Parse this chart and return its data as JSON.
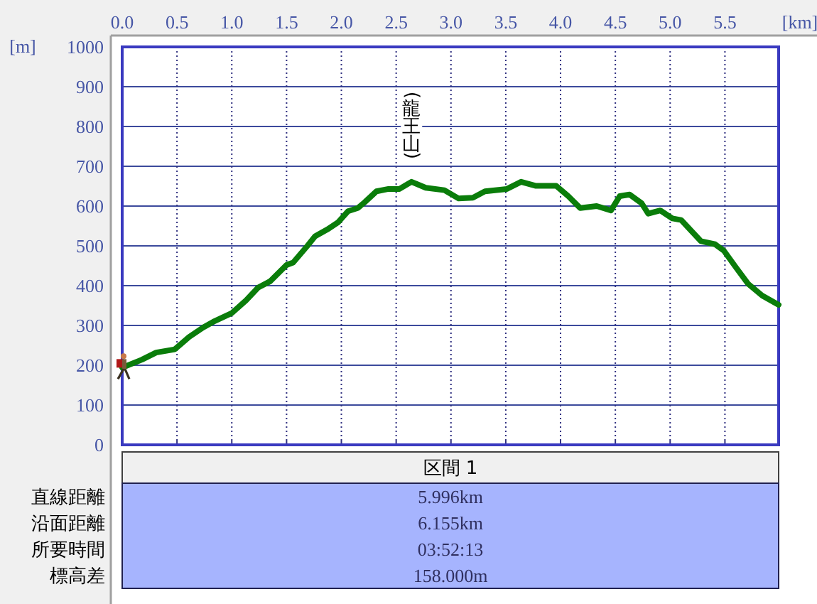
{
  "chart_data": [
    {
      "type": "line",
      "xlabel": "[km]",
      "ylabel": "[m]",
      "x": [
        0,
        0.18,
        0.31,
        0.48,
        0.61,
        0.74,
        0.83,
        1.0,
        1.13,
        1.24,
        1.35,
        1.5,
        1.56,
        1.69,
        1.76,
        1.87,
        1.97,
        2.06,
        2.15,
        2.21,
        2.32,
        2.43,
        2.53,
        2.64,
        2.77,
        2.94,
        3.07,
        3.2,
        3.31,
        3.51,
        3.64,
        3.77,
        3.96,
        4.07,
        4.18,
        4.33,
        4.46,
        4.54,
        4.63,
        4.74,
        4.8,
        4.91,
        5.02,
        5.1,
        5.28,
        5.41,
        5.49,
        5.6,
        5.71,
        5.84,
        5.99
      ],
      "series": [
        {
          "color": "#0a7d0a",
          "values": [
            194,
            214,
            232,
            240,
            271,
            295,
            309,
            331,
            363,
            395,
            411,
            452,
            458,
            500,
            524,
            541,
            559,
            587,
            595,
            609,
            637,
            643,
            643,
            661,
            646,
            640,
            619,
            621,
            637,
            643,
            661,
            651,
            651,
            625,
            595,
            600,
            589,
            625,
            629,
            607,
            581,
            589,
            569,
            565,
            512,
            504,
            488,
            446,
            405,
            375,
            352
          ]
        }
      ],
      "xlim": [
        0,
        5.99
      ],
      "ylim": [
        0,
        1000
      ],
      "xticks": [
        {
          "value": 0,
          "label": "0.0"
        },
        0.5,
        {
          "value": 1,
          "label": "1.0"
        },
        1.5,
        {
          "value": 2,
          "label": "2.0"
        },
        2.5,
        {
          "value": 3,
          "label": "3.0"
        },
        3.5,
        {
          "value": 4,
          "label": "4.0"
        },
        4.5,
        {
          "value": 5,
          "label": "5.0"
        },
        5.5
      ],
      "yticks": [
        0,
        100,
        200,
        300,
        400,
        500,
        600,
        700,
        800,
        900,
        1000
      ],
      "grid": true,
      "line_style": "solid",
      "annotations": [
        {
          "text": "(龍王山)",
          "x": 2.64,
          "y": 661
        }
      ]
    },
    {
      "type": "other",
      "title": "区間 1",
      "categories": [
        "直線距離",
        "沿面距離",
        "所要時間",
        "標高差"
      ],
      "value_labels": [
        "5.996km",
        "6.155km",
        "03:52:13",
        "158.000m"
      ]
    }
  ]
}
